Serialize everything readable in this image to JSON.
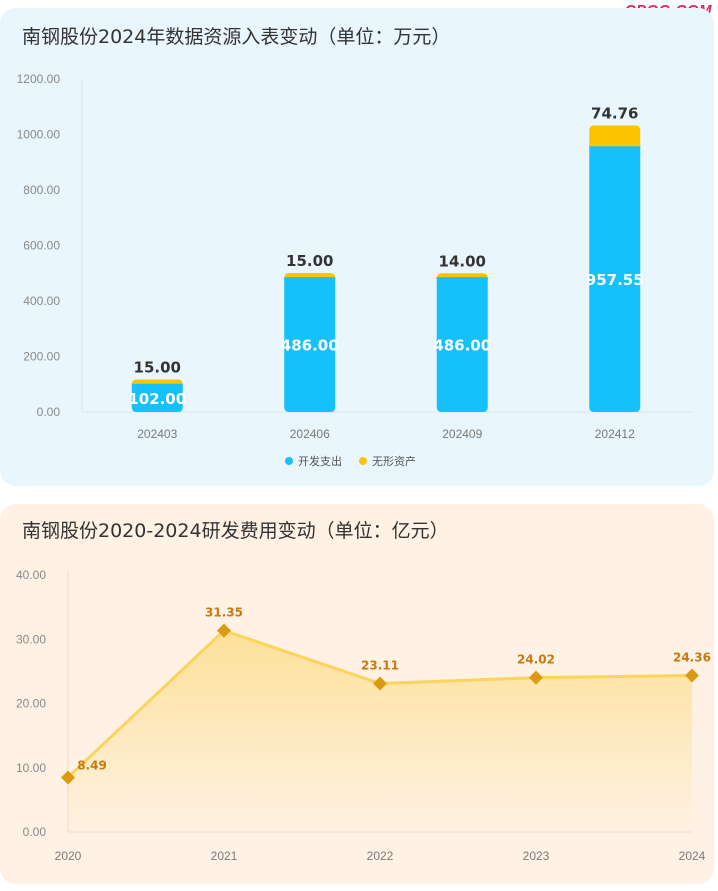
{
  "watermark": "CPQG.COM",
  "colors": {
    "dev": "#16c0fb",
    "intangible": "#fcc400",
    "line": "#fbd45c",
    "marker": "#dc9a12",
    "label": "#c77a10"
  },
  "chart_data": [
    {
      "type": "bar",
      "title": "南钢股份2024年数据资源入表变动（单位：万元）",
      "stacked": true,
      "categories": [
        "202403",
        "202406",
        "202409",
        "202412"
      ],
      "series": [
        {
          "name": "开发支出",
          "values": [
            102.0,
            486.0,
            486.0,
            957.55
          ]
        },
        {
          "name": "无形资产",
          "values": [
            15.0,
            15.0,
            14.0,
            74.76
          ]
        }
      ],
      "value_labels": {
        "bottom": [
          "102.00",
          "486.00",
          "486.00",
          "957.55"
        ],
        "top": [
          "15.00",
          "15.00",
          "14.00",
          "74.76"
        ]
      },
      "ylim": [
        0,
        1200
      ],
      "yticks": [
        "0.00",
        "200.00",
        "400.00",
        "600.00",
        "800.00",
        "1000.00",
        "1200.00"
      ],
      "legend": "bottom-center",
      "grid": false
    },
    {
      "type": "line",
      "title": "南钢股份2020-2024研发费用变动（单位：亿元）",
      "categories": [
        "2020",
        "2021",
        "2022",
        "2023",
        "2024"
      ],
      "values": [
        8.49,
        31.35,
        23.11,
        24.02,
        24.36
      ],
      "value_labels": [
        "8.49",
        "31.35",
        "23.11",
        "24.02",
        "24.36"
      ],
      "ylim": [
        0,
        40
      ],
      "yticks": [
        "0.00",
        "10.00",
        "20.00",
        "30.00",
        "40.00"
      ],
      "area_fill": true,
      "marker": "diamond",
      "grid": false
    }
  ]
}
